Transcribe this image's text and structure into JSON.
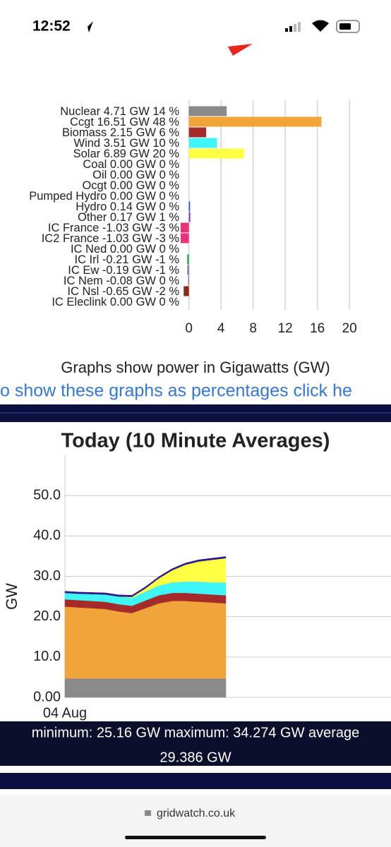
{
  "status_bar": {
    "time": "12:52"
  },
  "chart_data": [
    {
      "type": "bar",
      "horizontal": true,
      "categories": [
        "Nuclear 4.71 GW 14 %",
        "Ccgt 16.51 GW 48 %",
        "Biomass 2.15 GW 6 %",
        "Wind 3.51 GW 10 %",
        "Solar 6.89 GW 20 %",
        "Coal 0.00 GW 0 %",
        "Oil 0.00 GW 0 %",
        "Ocgt 0.00 GW 0 %",
        "Pumped Hydro 0.00 GW 0 %",
        "Hydro 0.14 GW 0 %",
        "Other 0.17 GW 1 %",
        "IC France -1.03 GW -3 %",
        "IC2 France -1.03 GW -3 %",
        "IC Ned 0.00 GW 0 %",
        "IC Irl -0.21 GW -1 %",
        "IC Ew -0.19 GW -1 %",
        "IC Nem -0.08 GW 0 %",
        "IC Nsl -0.65 GW -2 %",
        "IC Eleclink 0.00 GW 0 %"
      ],
      "values": [
        4.71,
        16.51,
        2.15,
        3.51,
        6.89,
        0,
        0,
        0,
        0,
        0.14,
        0.17,
        -1.03,
        -1.03,
        0,
        -0.21,
        -0.19,
        -0.08,
        -0.65,
        0
      ],
      "colors": [
        "#8a8a8a",
        "#f0a43a",
        "#a52a2a",
        "#3ff5f5",
        "#ffff44",
        "#000000",
        "#555555",
        "#777777",
        "#4444aa",
        "#2244cc",
        "#8833aa",
        "#e8337a",
        "#e8337a",
        "#ff8800",
        "#22aa44",
        "#6666cc",
        "#aa2266",
        "#8b2a1a",
        "#555555"
      ],
      "xlim": [
        -1.2,
        20.6
      ],
      "xticks": [
        0,
        4,
        8,
        12,
        16,
        20
      ],
      "grid": true
    },
    {
      "type": "area",
      "stacked": true,
      "title": "Today (10 Minute Averages)",
      "ylabel": "GW",
      "categories": [
        "04 Aug",
        null,
        null,
        null,
        null,
        null,
        null,
        null,
        null,
        null,
        null,
        null,
        null
      ],
      "series": [
        {
          "color": "#8a8a8a",
          "values": [
            4.7,
            4.7,
            4.7,
            4.7,
            4.7,
            4.7,
            4.7,
            4.7,
            4.7,
            4.7,
            4.7,
            4.7,
            4.7
          ]
        },
        {
          "color": "#f0a43a",
          "values": [
            17.8,
            17.6,
            17.4,
            17.2,
            16.6,
            16.2,
            17.4,
            18.6,
            19.2,
            19.2,
            19.0,
            18.8,
            18.6
          ]
        },
        {
          "color": "#a52a2a",
          "values": [
            1.8,
            1.8,
            1.8,
            1.8,
            1.8,
            1.8,
            1.9,
            2,
            2,
            2,
            2,
            2,
            2
          ]
        },
        {
          "color": "#3ff5f5",
          "values": [
            1.6,
            1.6,
            1.7,
            1.8,
            1.9,
            2,
            2.2,
            2.4,
            2.6,
            2.8,
            3,
            3,
            3.2
          ]
        },
        {
          "color": "#ffff44",
          "values": [
            0,
            0,
            0,
            0,
            0,
            0.2,
            0.8,
            1.8,
            3,
            4.2,
            5,
            5.6,
            6
          ]
        },
        {
          "color": "#2a1a8a",
          "values": [
            0.4,
            0.4,
            0.4,
            0.4,
            0.4,
            0.4,
            0.4,
            0.4,
            0.4,
            0.4,
            0.4,
            0.4,
            0.4
          ]
        }
      ],
      "ylim": [
        0,
        60
      ],
      "yticks": [
        {
          "value": 0,
          "label": "0.00"
        },
        {
          "value": 10,
          "label": "10.0"
        },
        {
          "value": 20,
          "label": "20.0"
        },
        {
          "value": 30,
          "label": "30.0"
        },
        {
          "value": 40,
          "label": "40.0"
        },
        {
          "value": 50,
          "label": "50.0"
        }
      ],
      "grid": true
    }
  ],
  "texts": {
    "units_note": "Graphs show power in Gigawatts (GW)",
    "percent_link": "o show these graphs as percentages click he",
    "stats_line1": "minimum: 25.16 GW maximum: 34.274 GW average",
    "stats_line2": "29.386 GW"
  },
  "footer": {
    "url": "gridwatch.co.uk"
  }
}
